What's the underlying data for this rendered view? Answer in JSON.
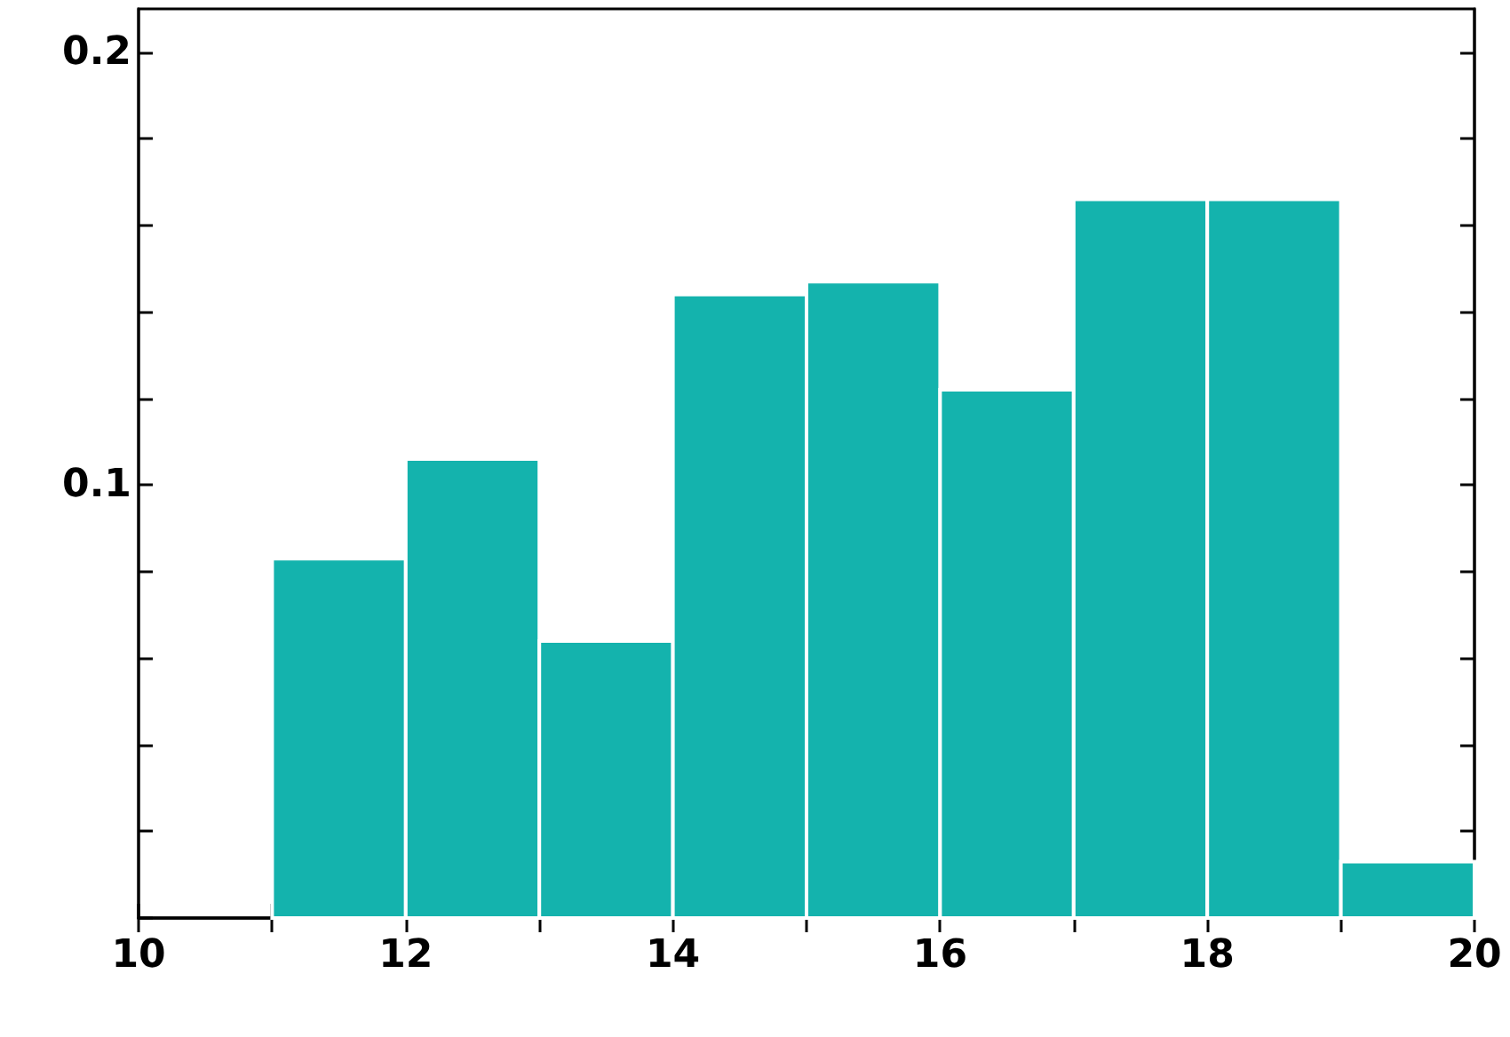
{
  "chart_data": {
    "type": "histogram",
    "color": "#14b3ad",
    "bins": [
      11,
      12,
      13,
      14,
      15,
      16,
      17,
      18,
      19,
      20
    ],
    "values": [
      0.083,
      0.106,
      0.064,
      0.144,
      0.147,
      0.122,
      0.166,
      0.166,
      0.013
    ],
    "xlim": [
      10,
      20
    ],
    "xticks": [
      10,
      {
        "value": 11,
        "label": null
      },
      12,
      {
        "value": 13,
        "label": null
      },
      14,
      {
        "value": 15,
        "label": null
      },
      16,
      {
        "value": 17,
        "label": null
      },
      18,
      {
        "value": 19,
        "label": null
      },
      20
    ],
    "ylim": [
      0,
      0.21
    ],
    "yticks": [
      {
        "value": 0,
        "label": null
      },
      {
        "value": 0.02,
        "label": null
      },
      {
        "value": 0.04,
        "label": null
      },
      {
        "value": 0.06,
        "label": null
      },
      {
        "value": 0.08,
        "label": null
      },
      0.1,
      {
        "value": 0.12,
        "label": null
      },
      {
        "value": 0.14,
        "label": null
      },
      {
        "value": 0.16,
        "label": null
      },
      {
        "value": 0.18,
        "label": null
      },
      0.2
    ],
    "grid": false
  }
}
